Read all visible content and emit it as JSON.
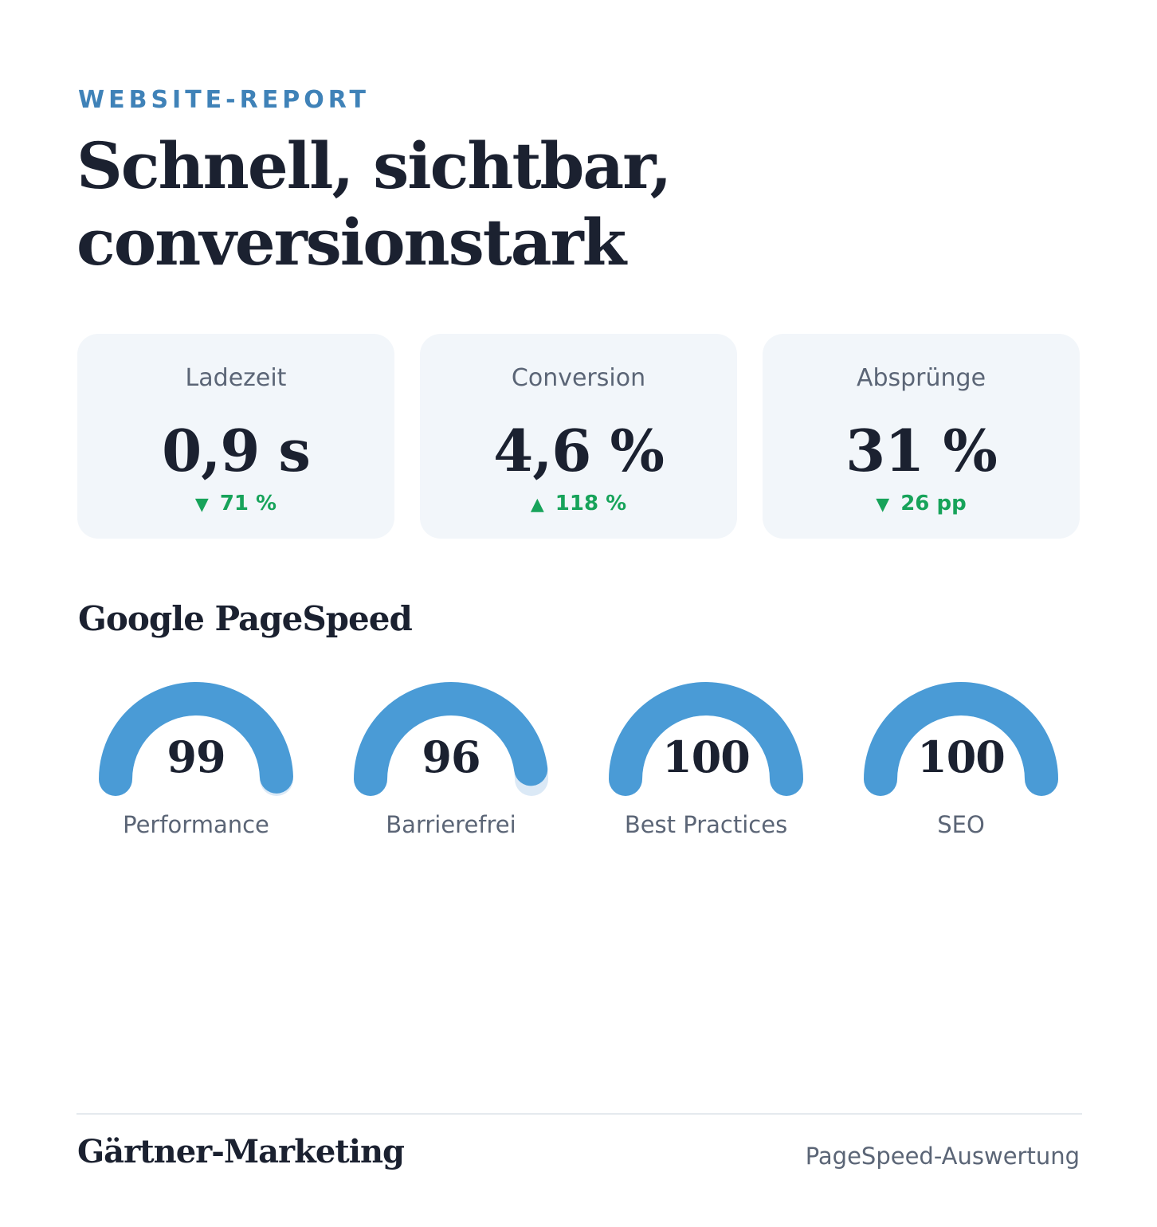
{
  "header": {
    "eyebrow": "WEBSITE-REPORT",
    "headline_line1": "Schnell, sichtbar,",
    "headline_line2": "conversionstark"
  },
  "kpis": [
    {
      "label": "Ladezeit",
      "value": "0,9 s",
      "trend_arrow": "▼",
      "trend_text": "71 %",
      "trend_direction": "down",
      "trend_color": "#17a35a"
    },
    {
      "label": "Conversion",
      "value": "4,6 %",
      "trend_arrow": "▲",
      "trend_text": "118 %",
      "trend_direction": "up",
      "trend_color": "#17a35a"
    },
    {
      "label": "Absprünge",
      "value": "31 %",
      "trend_arrow": "▼",
      "trend_text": "26 pp",
      "trend_direction": "down",
      "trend_color": "#17a35a"
    }
  ],
  "pagespeed": {
    "title": "Google PageSpeed",
    "gauge_color": "#4a9bd6",
    "gauge_track_color": "#dbe9f6",
    "gauges": [
      {
        "label": "Performance",
        "score": "99",
        "value": 99,
        "max": 100
      },
      {
        "label": "Barrierefrei",
        "score": "96",
        "value": 96,
        "max": 100
      },
      {
        "label": "Best Practices",
        "score": "100",
        "value": 100,
        "max": 100
      },
      {
        "label": "SEO",
        "score": "100",
        "value": 100,
        "max": 100
      }
    ]
  },
  "footer": {
    "brand": "Gärtner-Marketing",
    "note": "PageSpeed-Auswertung"
  },
  "colors": {
    "accent": "#3f82b8",
    "text_dark": "#1b2130",
    "text_muted": "#5b6576",
    "card_bg": "#f2f6fa",
    "positive": "#17a35a"
  }
}
